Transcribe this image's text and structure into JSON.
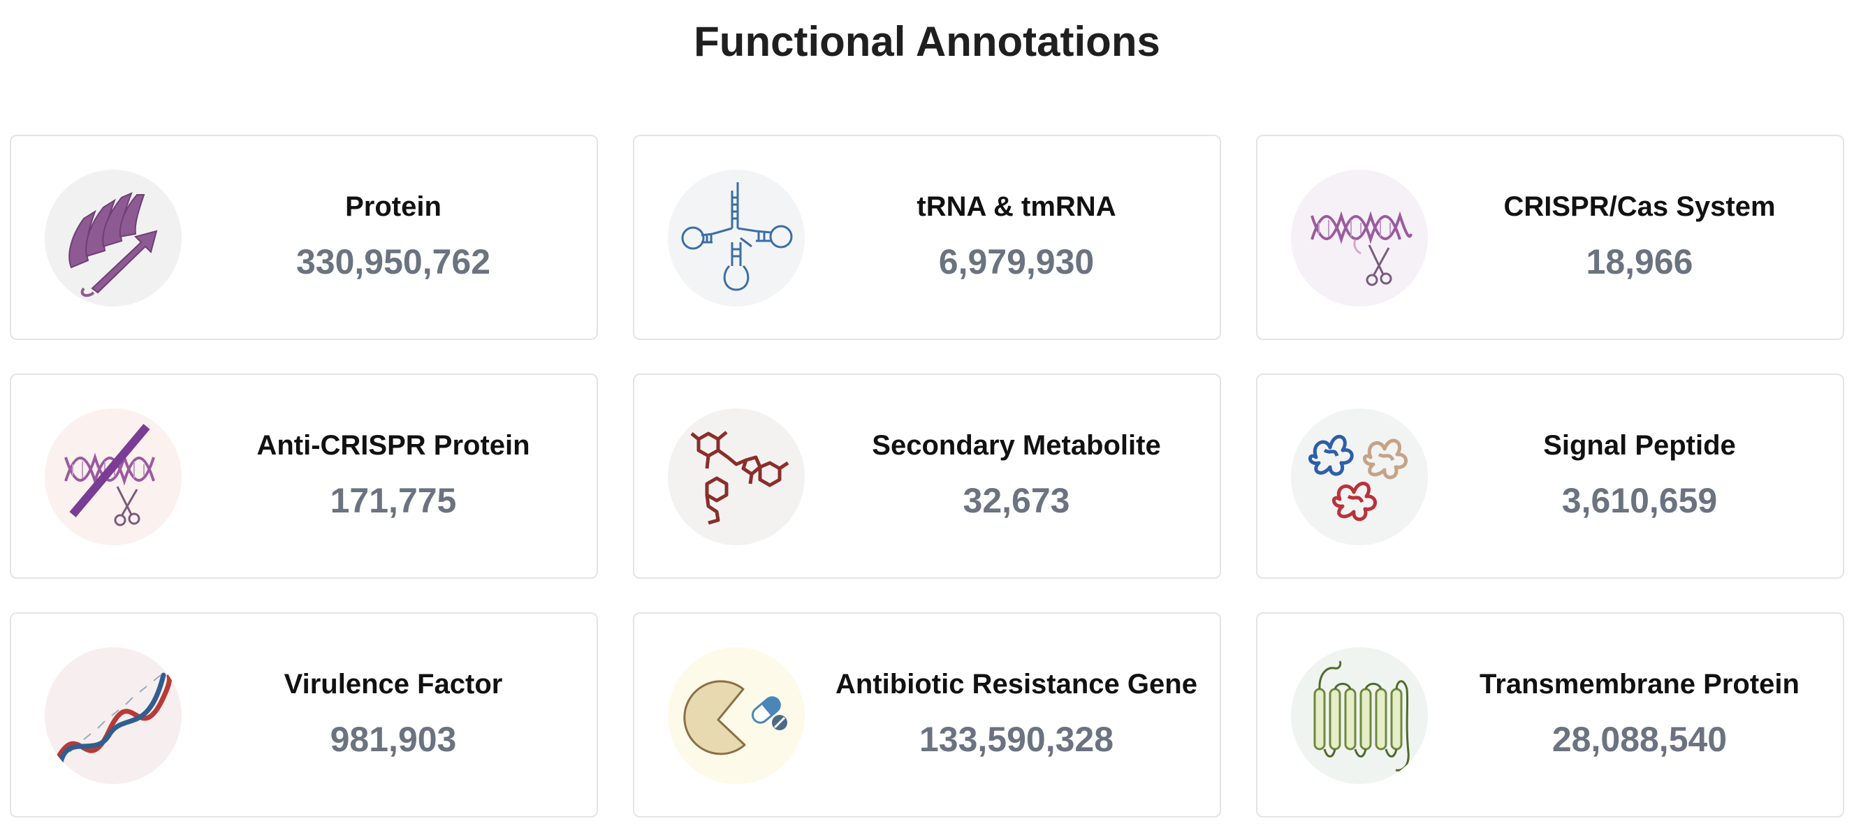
{
  "page": {
    "title": "Functional Annotations"
  },
  "cards": [
    {
      "label": "Protein",
      "count": "330,950,762",
      "icon": "protein-helix-icon",
      "bg": "#f1f1f2",
      "color": "#8e5a93"
    },
    {
      "label": "tRNA & tmRNA",
      "count": "6,979,930",
      "icon": "trna-cloverleaf-icon",
      "bg": "#f2f4f6",
      "color": "#3a6ea5"
    },
    {
      "label": "CRISPR/Cas System",
      "count": "18,966",
      "icon": "crispr-scissors-icon",
      "bg": "#f5f1f7",
      "color": "#9b5a9f"
    },
    {
      "label": "Anti-CRISPR Protein",
      "count": "171,775",
      "icon": "anti-crispr-icon",
      "bg": "#fbf1ef",
      "color": "#7a3c95"
    },
    {
      "label": "Secondary Metabolite",
      "count": "32,673",
      "icon": "molecule-rings-icon",
      "bg": "#f3f2f1",
      "color": "#8a2e2a"
    },
    {
      "label": "Signal Peptide",
      "count": "3,610,659",
      "icon": "peptide-coils-icon",
      "bg": "#f2f3f3",
      "color": "#2c5fa8"
    },
    {
      "label": "Virulence Factor",
      "count": "981,903",
      "icon": "dna-double-helix-icon",
      "bg": "#f7eef0",
      "color": "#b83a36"
    },
    {
      "label": "Antibiotic Resistance Gene",
      "count": "133,590,328",
      "icon": "pacman-pill-icon",
      "bg": "#fdfaea",
      "color": "#4a86b8"
    },
    {
      "label": "Transmembrane Protein",
      "count": "28,088,540",
      "icon": "membrane-helices-icon",
      "bg": "#f0f4f0",
      "color": "#6e8a3c"
    }
  ]
}
